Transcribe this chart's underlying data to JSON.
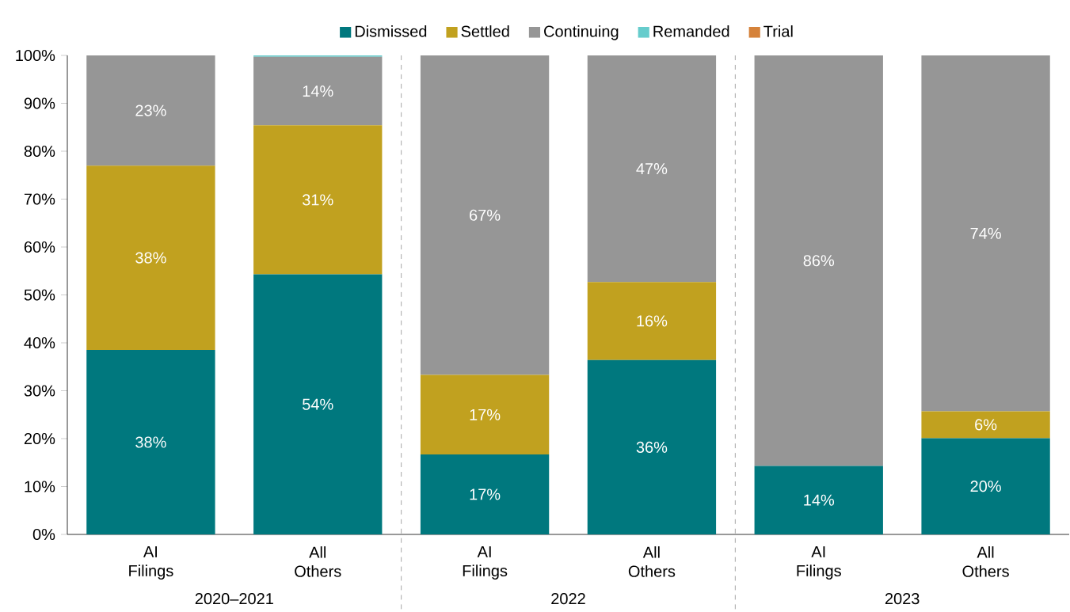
{
  "chart_data": {
    "type": "bar",
    "stacked": true,
    "categories": [
      "AI Filings",
      "All Others",
      "AI Filings",
      "All Others",
      "AI Filings",
      "All Others"
    ],
    "series": [
      {
        "name": "Dismissed",
        "color": "#00787e",
        "values": [
          38.5,
          54.3,
          16.7,
          36.4,
          14.3,
          20.1
        ],
        "value_labels": [
          "38%",
          "54%",
          "17%",
          "36%",
          "14%",
          "20%"
        ]
      },
      {
        "name": "Settled",
        "color": "#c1a11f",
        "values": [
          38.5,
          31.1,
          16.6,
          16.3,
          0,
          5.6
        ],
        "value_labels": [
          "38%",
          "31%",
          "17%",
          "16%",
          null,
          "6%"
        ]
      },
      {
        "name": "Continuing",
        "color": "#969696",
        "values": [
          23.0,
          14.3,
          66.7,
          47.3,
          85.7,
          74.3
        ],
        "value_labels": [
          "23%",
          "14%",
          "67%",
          "47%",
          "86%",
          "74%"
        ]
      },
      {
        "name": "Remanded",
        "color": "#66cccc",
        "values": [
          0,
          0.3,
          0,
          0,
          0,
          0
        ]
      },
      {
        "name": "Trial",
        "color": "#d5823a",
        "values": [
          0,
          0,
          0,
          0,
          0,
          0
        ]
      }
    ],
    "ylim": [
      0,
      100
    ],
    "yticks": [
      {
        "value": 0,
        "label": "0%"
      },
      {
        "value": 10,
        "label": "10%"
      },
      {
        "value": 20,
        "label": "20%"
      },
      {
        "value": 30,
        "label": "30%"
      },
      {
        "value": 40,
        "label": "40%"
      },
      {
        "value": 50,
        "label": "50%"
      },
      {
        "value": 60,
        "label": "60%"
      },
      {
        "value": 70,
        "label": "70%"
      },
      {
        "value": 80,
        "label": "80%"
      },
      {
        "value": 90,
        "label": "90%"
      },
      {
        "value": 100,
        "label": "100%"
      }
    ],
    "annotations": [
      "2020–2021",
      "2022",
      "2023"
    ],
    "grid": false,
    "legend": "top"
  }
}
